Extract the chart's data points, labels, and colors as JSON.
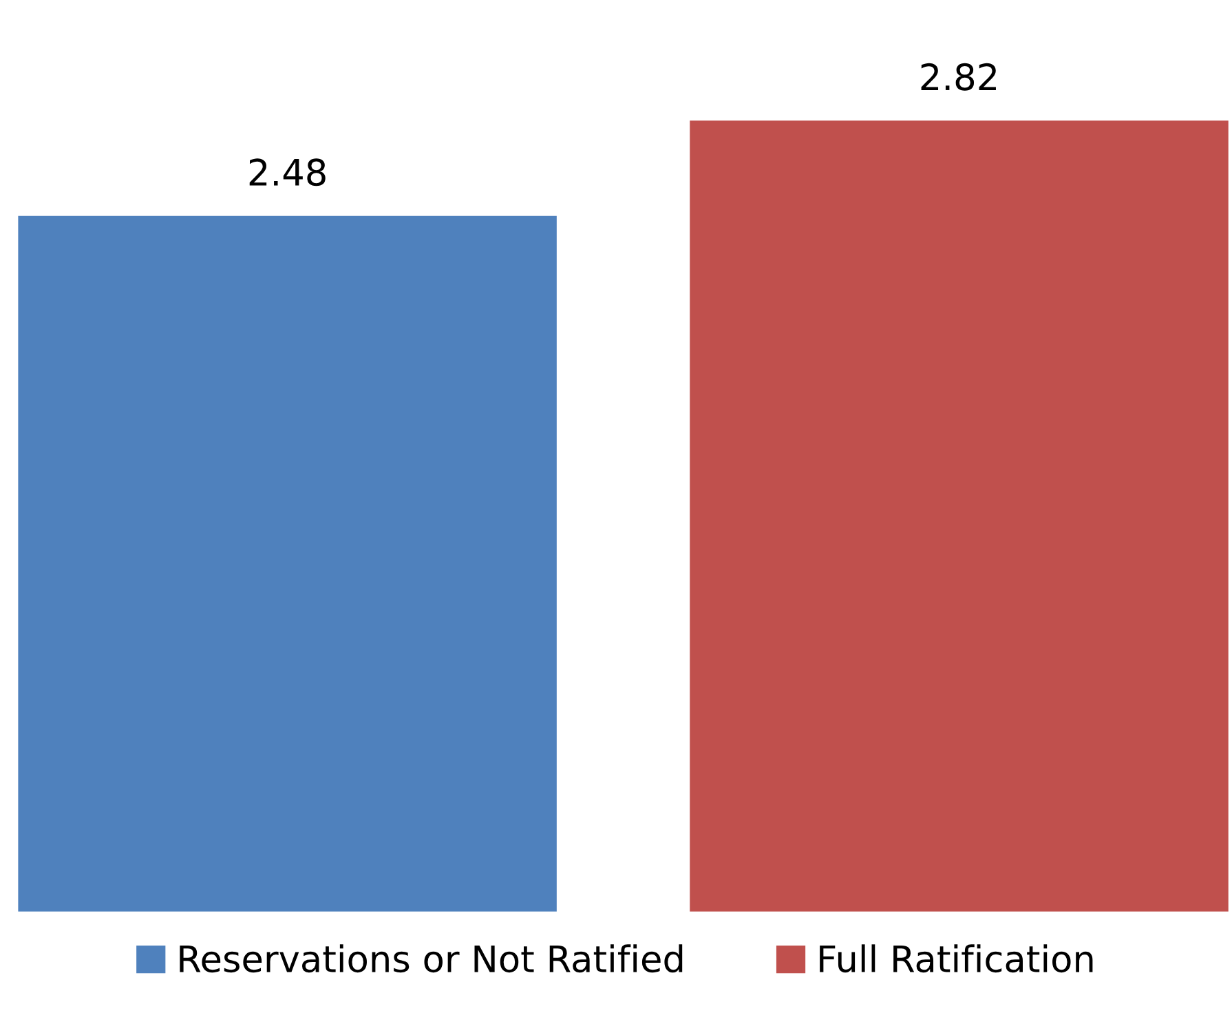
{
  "chart_data": {
    "type": "bar",
    "categories": [
      null
    ],
    "series": [
      {
        "name": "Reservations or Not Ratified",
        "color": "#4f81bd",
        "values": [
          2.48
        ]
      },
      {
        "name": "Full Ratification",
        "color": "#c0504d",
        "values": [
          2.82
        ]
      }
    ],
    "data_labels": true,
    "legend": "bottom",
    "grid": false
  }
}
